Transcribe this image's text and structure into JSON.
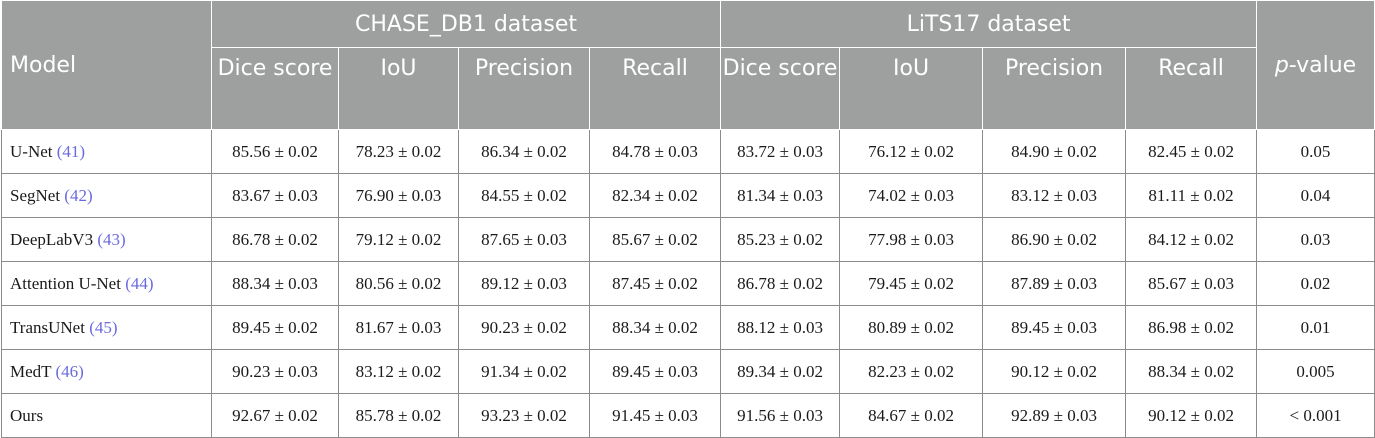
{
  "header": {
    "model": "Model",
    "group1": "CHASE_DB1 dataset",
    "group2": "LiTS17 dataset",
    "pvalue_italic": "p",
    "pvalue_rest": "-value",
    "metrics": [
      "Dice score",
      "IoU",
      "Precision",
      "Recall",
      "Dice score",
      "IoU",
      "Precision",
      "Recall"
    ]
  },
  "rows": [
    {
      "model": "U-Net",
      "ref": "(41)",
      "values": [
        "85.56 ± 0.02",
        "78.23 ± 0.02",
        "86.34 ± 0.02",
        "84.78 ± 0.03",
        "83.72 ± 0.03",
        "76.12 ± 0.02",
        "84.90 ± 0.02",
        "82.45 ± 0.02"
      ],
      "p": "0.05"
    },
    {
      "model": "SegNet",
      "ref": "(42)",
      "values": [
        "83.67 ± 0.03",
        "76.90 ± 0.03",
        "84.55 ± 0.02",
        "82.34 ± 0.02",
        "81.34 ± 0.03",
        "74.02 ± 0.03",
        "83.12 ± 0.03",
        "81.11 ± 0.02"
      ],
      "p": "0.04"
    },
    {
      "model": "DeepLabV3",
      "ref": "(43)",
      "values": [
        "86.78 ± 0.02",
        "79.12 ± 0.02",
        "87.65 ± 0.03",
        "85.67 ± 0.02",
        "85.23 ± 0.02",
        "77.98 ±  0.03",
        "86.90 ± 0.02",
        "84.12 ± 0.02"
      ],
      "p": "0.03"
    },
    {
      "model": "Attention U-Net",
      "ref": "(44)",
      "values": [
        "88.34 ± 0.03",
        "80.56 ± 0.02",
        "89.12 ± 0.03",
        "87.45 ± 0.02",
        "86.78 ± 0.02",
        "79.45  ± 0.02",
        "87.89 ± 0.03",
        "85.67 ± 0.03"
      ],
      "p": "0.02"
    },
    {
      "model": "TransUNet",
      "ref": "(45)",
      "values": [
        "89.45 ± 0.02",
        "81.67 ± 0.03",
        "90.23 ± 0.02",
        "88.34 ± 0.02",
        "88.12 ± 0.03",
        "80.89 ±  0.02",
        "89.45 ± 0.03",
        "86.98 ± 0.02"
      ],
      "p": "0.01"
    },
    {
      "model": "MedT",
      "ref": "(46)",
      "values": [
        "90.23 ± 0.03",
        "83.12 ± 0.02",
        "91.34 ± 0.02",
        "89.45 ± 0.03",
        "89.34 ± 0.02",
        "82.23 ± 0.02",
        "90.12 ± 0.02",
        "88.34 ± 0.02"
      ],
      "p": "0.005"
    },
    {
      "model": "Ours",
      "ref": "",
      "values": [
        "92.67 ± 0.02",
        "85.78 ± 0.02",
        "93.23 ± 0.02",
        "91.45 ± 0.03",
        "91.56 ± 0.03",
        "84.67 ± 0.02",
        "92.89 ± 0.03",
        "90.12 ± 0.02"
      ],
      "p": "< 0.001"
    }
  ]
}
